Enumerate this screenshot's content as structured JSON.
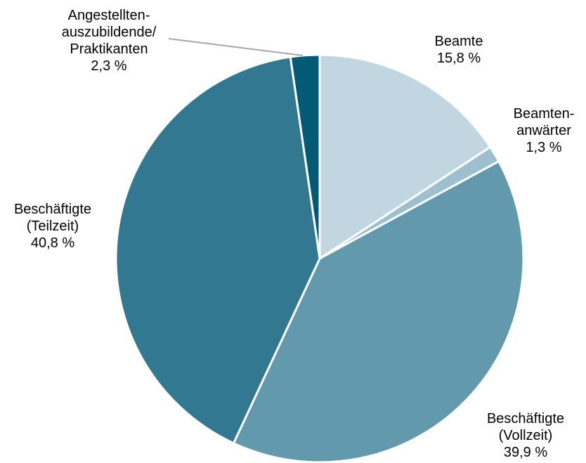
{
  "chart_data": {
    "type": "pie",
    "start": "12 o'clock",
    "direction": "clockwise",
    "slices": [
      {
        "lines": [
          "Beamte"
        ],
        "value": 15.8,
        "value_text": "15,8 %",
        "color": "#c2d6e2"
      },
      {
        "lines": [
          "Beamten-",
          "anwärter"
        ],
        "value": 1.3,
        "value_text": "1,3 %",
        "color": "#9ebfcf"
      },
      {
        "lines": [
          "Beschäftigte",
          "(Vollzeit)"
        ],
        "value": 39.9,
        "value_text": "39,9 %",
        "color": "#6299ad"
      },
      {
        "lines": [
          "Beschäftigte",
          "(Teilzeit)"
        ],
        "value": 40.8,
        "value_text": "40,8 %",
        "color": "#327890"
      },
      {
        "lines": [
          "Angestellten-",
          "auszubildende/",
          "Praktikanten"
        ],
        "value": 2.3,
        "value_text": "2,3 %",
        "color": "#035a74"
      }
    ]
  }
}
